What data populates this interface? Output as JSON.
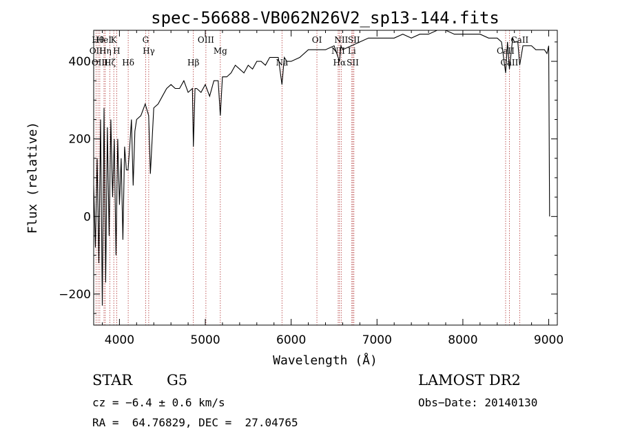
{
  "chart_data": {
    "type": "line",
    "title": "spec-56688-VB062N26V2_sp13-144.fits",
    "xlabel": "Wavelength (Å)",
    "ylabel": "Flux (relative)",
    "xlim": [
      3700,
      9100
    ],
    "ylim": [
      -280,
      480
    ],
    "xticks": [
      4000,
      5000,
      6000,
      7000,
      8000,
      9000
    ],
    "yticks": [
      -200,
      0,
      200,
      400
    ],
    "grid": false,
    "line_color": "#000000",
    "marker_color": "#b03030",
    "series": [
      {
        "x": [
          3700,
          3720,
          3740,
          3760,
          3780,
          3800,
          3820,
          3840,
          3860,
          3880,
          3900,
          3920,
          3940,
          3960,
          3980,
          4000,
          4020,
          4040,
          4060,
          4080,
          4100,
          4120,
          4140,
          4160,
          4180,
          4200,
          4250,
          4300,
          4340,
          4360,
          4400,
          4450,
          4500,
          4550,
          4600,
          4650,
          4700,
          4750,
          4800,
          4850,
          4861,
          4880,
          4900,
          4950,
          5000,
          5050,
          5100,
          5150,
          5175,
          5200,
          5250,
          5300,
          5350,
          5400,
          5450,
          5500,
          5550,
          5600,
          5650,
          5700,
          5750,
          5800,
          5850,
          5893,
          5920,
          5950,
          6000,
          6100,
          6200,
          6300,
          6400,
          6500,
          6563,
          6580,
          6600,
          6700,
          6800,
          6900,
          7000,
          7100,
          7200,
          7300,
          7400,
          7500,
          7600,
          7700,
          7800,
          7900,
          8000,
          8100,
          8200,
          8300,
          8400,
          8450,
          8498,
          8520,
          8542,
          8580,
          8600,
          8640,
          8662,
          8700,
          8750,
          8800,
          8850,
          8900,
          8950,
          8980,
          8990,
          9000,
          9010
        ],
        "y": [
          80,
          -80,
          150,
          -120,
          250,
          -230,
          280,
          -170,
          230,
          -50,
          250,
          50,
          200,
          -100,
          200,
          30,
          150,
          -60,
          180,
          120,
          120,
          180,
          250,
          80,
          220,
          250,
          260,
          290,
          260,
          110,
          280,
          290,
          310,
          330,
          340,
          330,
          330,
          350,
          320,
          330,
          180,
          330,
          330,
          320,
          340,
          310,
          350,
          350,
          260,
          360,
          360,
          370,
          390,
          380,
          370,
          390,
          380,
          400,
          400,
          390,
          410,
          410,
          410,
          340,
          410,
          400,
          400,
          410,
          430,
          430,
          430,
          440,
          400,
          440,
          430,
          440,
          450,
          460,
          460,
          460,
          460,
          470,
          460,
          470,
          470,
          480,
          480,
          470,
          470,
          470,
          470,
          460,
          460,
          450,
          370,
          450,
          380,
          460,
          450,
          450,
          390,
          440,
          440,
          440,
          430,
          430,
          430,
          420,
          430,
          440,
          0
        ]
      }
    ],
    "line_markers": [
      {
        "wl": 3750,
        "label": "Hθ"
      },
      {
        "wl": 3727,
        "label": "OII"
      },
      {
        "wl": 3771,
        "label": "OIII"
      },
      {
        "wl": 3820,
        "label": "HeI"
      },
      {
        "wl": 3835,
        "label": "Hη"
      },
      {
        "wl": 3889,
        "label": "Hζ"
      },
      {
        "wl": 3934,
        "label": "K"
      },
      {
        "wl": 3968,
        "label": "H"
      },
      {
        "wl": 4102,
        "label": "Hδ"
      },
      {
        "wl": 4305,
        "label": "G"
      },
      {
        "wl": 4341,
        "label": "Hγ"
      },
      {
        "wl": 4861,
        "label": "Hβ"
      },
      {
        "wl": 5007,
        "label": "OIII"
      },
      {
        "wl": 5175,
        "label": "Mg"
      },
      {
        "wl": 5893,
        "label": "Na"
      },
      {
        "wl": 6300,
        "label": "OI"
      },
      {
        "wl": 6548,
        "label": "NII"
      },
      {
        "wl": 6563,
        "label": "Hα"
      },
      {
        "wl": 6583,
        "label": "NII"
      },
      {
        "wl": 6707,
        "label": "Li"
      },
      {
        "wl": 6717,
        "label": "SII"
      },
      {
        "wl": 6731,
        "label": "SII"
      },
      {
        "wl": 8498,
        "label": "CaII"
      },
      {
        "wl": 8542,
        "label": "CaII"
      },
      {
        "wl": 8662,
        "label": "CaII"
      }
    ]
  },
  "info": {
    "class_label": "STAR",
    "subclass": "G5",
    "survey": "LAMOST DR2",
    "cz": "cz = −6.4 ± 0.6 km/s",
    "obs_date": "Obs−Date: 20140130",
    "radec": "RA =  64.76829, DEC =  27.04765"
  }
}
